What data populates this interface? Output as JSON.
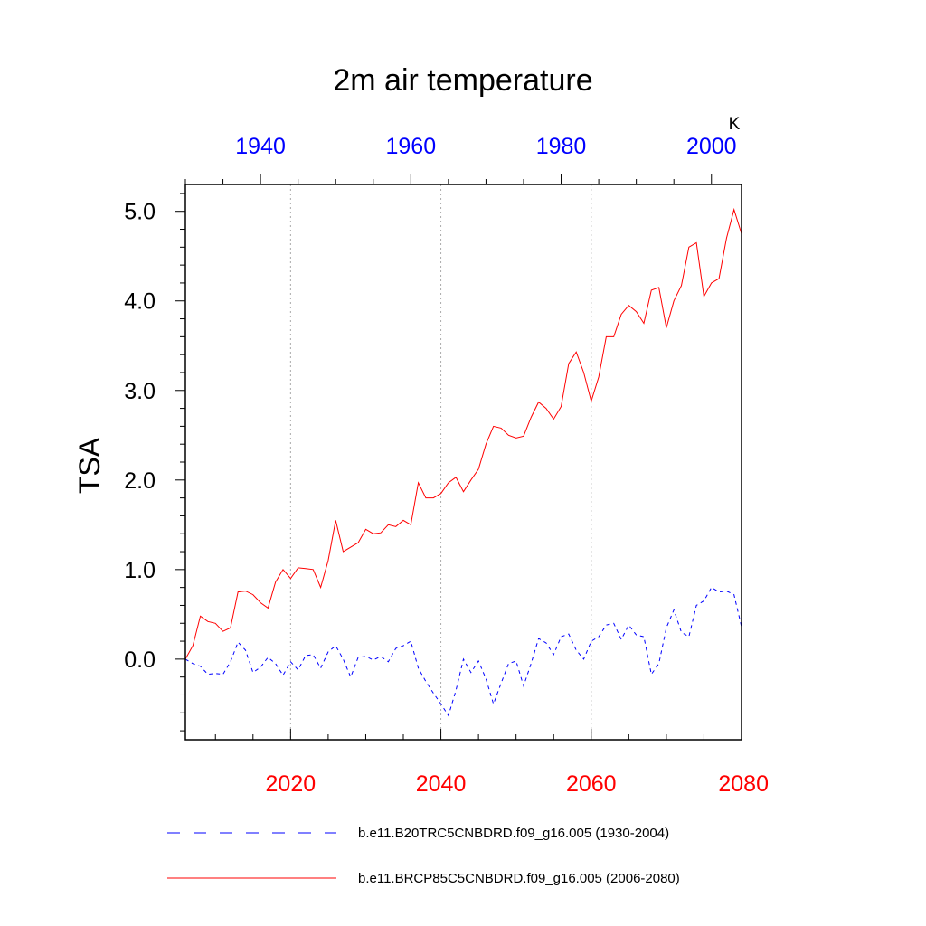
{
  "chart_data": {
    "type": "line",
    "title": "2m air temperature",
    "units": "K",
    "ylabel": "TSA",
    "ylim": [
      -0.9,
      5.3
    ],
    "yticks": [
      0.0,
      1.0,
      2.0,
      3.0,
      4.0,
      5.0
    ],
    "ytick_labels": [
      "0.0",
      "1.0",
      "2.0",
      "3.0",
      "4.0",
      "5.0"
    ],
    "bottom_axis": {
      "range": [
        2006,
        2080
      ],
      "ticks": [
        2020,
        2040,
        2060,
        2080
      ],
      "tick_labels": [
        "2020",
        "2040",
        "2060",
        "2080"
      ],
      "color": "#ff0000"
    },
    "top_axis": {
      "range": [
        1930,
        2004
      ],
      "ticks": [
        1940,
        1960,
        1980,
        2000
      ],
      "tick_labels": [
        "1940",
        "1960",
        "1980",
        "2000"
      ],
      "color": "#0000ff"
    },
    "grid": "vertical dotted at major ticks",
    "legend_position": "bottom",
    "series": [
      {
        "name": "b.e11.B20TRC5CNBDRD.f09_g16.005 (1930-2004)",
        "color": "#0000ff",
        "style": "dashed",
        "x_start": 1930,
        "values": [
          0.0,
          -0.05,
          -0.08,
          -0.17,
          -0.16,
          -0.17,
          -0.03,
          0.19,
          0.1,
          -0.15,
          -0.09,
          0.02,
          -0.05,
          -0.18,
          -0.03,
          -0.12,
          0.04,
          0.05,
          -0.1,
          0.08,
          0.15,
          0.0,
          -0.2,
          0.02,
          0.03,
          -0.01,
          0.03,
          -0.03,
          0.12,
          0.15,
          0.2,
          -0.1,
          -0.25,
          -0.38,
          -0.5,
          -0.63,
          -0.35,
          0.0,
          -0.15,
          -0.02,
          -0.22,
          -0.5,
          -0.27,
          -0.05,
          -0.02,
          -0.3,
          -0.05,
          0.23,
          0.18,
          0.05,
          0.25,
          0.28,
          0.1,
          0.0,
          0.2,
          0.25,
          0.38,
          0.4,
          0.22,
          0.38,
          0.27,
          0.25,
          -0.17,
          -0.05,
          0.35,
          0.55,
          0.3,
          0.25,
          0.6,
          0.65,
          0.8,
          0.75,
          0.76,
          0.72,
          0.36
        ]
      },
      {
        "name": "b.e11.BRCP85C5CNBDRD.f09_g16.005 (2006-2080)",
        "color": "#ff0000",
        "style": "solid",
        "x_start": 2006,
        "values": [
          0.0,
          0.15,
          0.48,
          0.42,
          0.4,
          0.31,
          0.35,
          0.75,
          0.76,
          0.72,
          0.63,
          0.57,
          0.86,
          1.0,
          0.9,
          1.02,
          1.01,
          1.0,
          0.8,
          1.1,
          1.55,
          1.2,
          1.25,
          1.3,
          1.45,
          1.4,
          1.41,
          1.5,
          1.48,
          1.55,
          1.5,
          1.97,
          1.8,
          1.8,
          1.85,
          1.97,
          2.03,
          1.87,
          2.0,
          2.12,
          2.4,
          2.6,
          2.58,
          2.5,
          2.47,
          2.49,
          2.7,
          2.87,
          2.8,
          2.68,
          2.82,
          3.3,
          3.43,
          3.2,
          2.88,
          3.15,
          3.6,
          3.6,
          3.85,
          3.95,
          3.88,
          3.75,
          4.12,
          4.15,
          3.7,
          4.0,
          4.17,
          4.6,
          4.65,
          4.05,
          4.2,
          4.25,
          4.7,
          5.02,
          4.75
        ]
      }
    ]
  }
}
